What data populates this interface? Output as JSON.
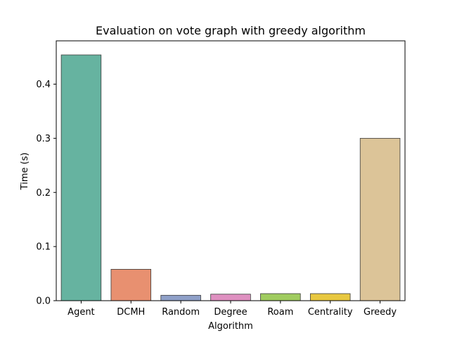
{
  "chart_data": {
    "type": "bar",
    "title": "Evaluation on vote graph with greedy algorithm",
    "xlabel": "Algorithm",
    "ylabel": "Time (s)",
    "categories": [
      "Agent",
      "DCMH",
      "Random",
      "Degree",
      "Roam",
      "Centrality",
      "Greedy"
    ],
    "values": [
      0.454,
      0.058,
      0.01,
      0.012,
      0.013,
      0.013,
      0.3
    ],
    "colors": [
      "#66b3a0",
      "#e89070",
      "#8fa0c8",
      "#de90c0",
      "#a0cc60",
      "#e8c840",
      "#dcc498"
    ],
    "ylim": [
      0,
      0.48
    ],
    "yticks": [
      0.0,
      0.1,
      0.2,
      0.3,
      0.4
    ],
    "ytick_labels": [
      "0.0",
      "0.1",
      "0.2",
      "0.3",
      "0.4"
    ],
    "grid": false,
    "legend": "none"
  }
}
